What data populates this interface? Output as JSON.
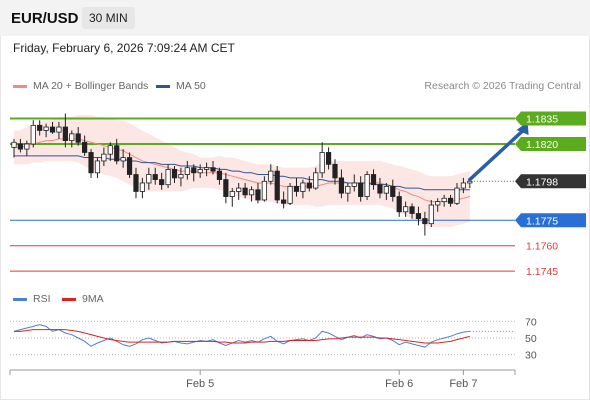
{
  "header": {
    "symbol": "EUR/USD",
    "timeframe": "30 MIN"
  },
  "datetime": "Friday, February 6, 2026 7:09:24 AM CET",
  "legend": {
    "ma20": {
      "label": "MA 20 + Bollinger Bands",
      "color": "#f28b82"
    },
    "ma50": {
      "label": "MA 50",
      "color": "#2f5597"
    },
    "rsi": {
      "label": "RSI",
      "color": "#4f7fd4"
    },
    "ma9": {
      "label": "9MA",
      "color": "#e02020"
    }
  },
  "credit": "Research © 2026 Trading Central",
  "chart_data": [
    {
      "type": "candlestick",
      "ylim": [
        1.1738,
        1.1843
      ],
      "x_ticks": [
        {
          "label": "Feb 5",
          "at": 29
        },
        {
          "label": "Feb 6",
          "at": 60
        },
        {
          "label": "Feb 7",
          "at": 70
        }
      ],
      "last_price": {
        "value": "1.1798",
        "v": 1.1798,
        "color": "#333333"
      },
      "levels": [
        {
          "label": "1.1835",
          "v": 1.1835,
          "color": "#5aab1e",
          "kind": "resistance"
        },
        {
          "label": "1.1820",
          "v": 1.182,
          "color": "#5aab1e",
          "kind": "resistance"
        },
        {
          "label": "1.1775",
          "v": 1.1775,
          "color": "#2a6fd6",
          "kind": "pivot"
        },
        {
          "label": "1.1760",
          "v": 1.176,
          "color": "#e53935",
          "kind": "support"
        },
        {
          "label": "1.1745",
          "v": 1.1745,
          "color": "#e53935",
          "kind": "support"
        }
      ],
      "forecast_arrow": {
        "from": [
          71,
          1.1799
        ],
        "to": [
          80,
          1.1833
        ],
        "color": "#2a5ea8"
      },
      "candles": [
        [
          1.1818,
          1.1823,
          1.1812,
          1.1821
        ],
        [
          1.182,
          1.1823,
          1.1815,
          1.1817
        ],
        [
          1.1817,
          1.1822,
          1.1813,
          1.182
        ],
        [
          1.182,
          1.1834,
          1.1818,
          1.1831
        ],
        [
          1.1831,
          1.1834,
          1.1825,
          1.1828
        ],
        [
          1.1828,
          1.1832,
          1.1824,
          1.183
        ],
        [
          1.183,
          1.1833,
          1.1826,
          1.1827
        ],
        [
          1.1827,
          1.1833,
          1.1823,
          1.183
        ],
        [
          1.183,
          1.1838,
          1.1818,
          1.1822
        ],
        [
          1.1822,
          1.1828,
          1.1818,
          1.1826
        ],
        [
          1.1826,
          1.183,
          1.1819,
          1.1821
        ],
        [
          1.1821,
          1.1825,
          1.1813,
          1.1815
        ],
        [
          1.1815,
          1.1817,
          1.18,
          1.1803
        ],
        [
          1.1803,
          1.1812,
          1.18,
          1.181
        ],
        [
          1.181,
          1.1818,
          1.1807,
          1.1814
        ],
        [
          1.1814,
          1.1821,
          1.181,
          1.1819
        ],
        [
          1.1819,
          1.1823,
          1.1808,
          1.181
        ],
        [
          1.181,
          1.1817,
          1.1806,
          1.1812
        ],
        [
          1.1812,
          1.1815,
          1.18,
          1.1802
        ],
        [
          1.1802,
          1.1806,
          1.1788,
          1.1792
        ],
        [
          1.1792,
          1.18,
          1.1788,
          1.1797
        ],
        [
          1.1797,
          1.1806,
          1.1793,
          1.1802
        ],
        [
          1.1802,
          1.1806,
          1.1796,
          1.1799
        ],
        [
          1.1799,
          1.1803,
          1.1793,
          1.1796
        ],
        [
          1.1796,
          1.1808,
          1.1794,
          1.1805
        ],
        [
          1.1805,
          1.1807,
          1.1797,
          1.18
        ],
        [
          1.18,
          1.1806,
          1.1795,
          1.1802
        ],
        [
          1.1802,
          1.181,
          1.1799,
          1.1806
        ],
        [
          1.1806,
          1.1808,
          1.1798,
          1.1803
        ],
        [
          1.1803,
          1.1808,
          1.18,
          1.1805
        ],
        [
          1.1805,
          1.1809,
          1.1801,
          1.1806
        ],
        [
          1.1806,
          1.181,
          1.1802,
          1.1804
        ],
        [
          1.1804,
          1.1806,
          1.1796,
          1.1799
        ],
        [
          1.1799,
          1.1803,
          1.1785,
          1.1789
        ],
        [
          1.1789,
          1.1794,
          1.1783,
          1.1792
        ],
        [
          1.1792,
          1.1797,
          1.1787,
          1.1794
        ],
        [
          1.1794,
          1.1797,
          1.1788,
          1.179
        ],
        [
          1.179,
          1.1795,
          1.1786,
          1.1793
        ],
        [
          1.1793,
          1.1797,
          1.1785,
          1.1787
        ],
        [
          1.1787,
          1.1801,
          1.1786,
          1.1798
        ],
        [
          1.1798,
          1.1808,
          1.1796,
          1.1804
        ],
        [
          1.1804,
          1.1807,
          1.1785,
          1.1787
        ],
        [
          1.1787,
          1.1792,
          1.1782,
          1.1785
        ],
        [
          1.1785,
          1.1797,
          1.1784,
          1.1795
        ],
        [
          1.1795,
          1.18,
          1.1789,
          1.1792
        ],
        [
          1.1792,
          1.1799,
          1.1788,
          1.1797
        ],
        [
          1.1797,
          1.1801,
          1.1792,
          1.1794
        ],
        [
          1.1794,
          1.1806,
          1.1793,
          1.1803
        ],
        [
          1.1803,
          1.1821,
          1.18,
          1.1815
        ],
        [
          1.1815,
          1.1818,
          1.1805,
          1.1808
        ],
        [
          1.1808,
          1.1811,
          1.1796,
          1.18
        ],
        [
          1.18,
          1.1805,
          1.1788,
          1.1791
        ],
        [
          1.1791,
          1.1797,
          1.1786,
          1.1795
        ],
        [
          1.1795,
          1.1802,
          1.1792,
          1.1797
        ],
        [
          1.1797,
          1.1801,
          1.1786,
          1.1789
        ],
        [
          1.1789,
          1.1804,
          1.1787,
          1.1802
        ],
        [
          1.1802,
          1.1805,
          1.1793,
          1.1796
        ],
        [
          1.1796,
          1.18,
          1.1788,
          1.1791
        ],
        [
          1.1791,
          1.1797,
          1.1787,
          1.1795
        ],
        [
          1.1795,
          1.1799,
          1.1786,
          1.1789
        ],
        [
          1.1789,
          1.1792,
          1.1777,
          1.178
        ],
        [
          1.178,
          1.1786,
          1.1777,
          1.1783
        ],
        [
          1.1783,
          1.1785,
          1.1776,
          1.1779
        ],
        [
          1.1779,
          1.1783,
          1.1772,
          1.1776
        ],
        [
          1.1776,
          1.178,
          1.1766,
          1.1773
        ],
        [
          1.1773,
          1.1787,
          1.1771,
          1.1784
        ],
        [
          1.1784,
          1.1788,
          1.178,
          1.1786
        ],
        [
          1.1786,
          1.179,
          1.1783,
          1.1788
        ],
        [
          1.1788,
          1.179,
          1.1783,
          1.1785
        ],
        [
          1.1785,
          1.1797,
          1.1784,
          1.1794
        ],
        [
          1.1794,
          1.18,
          1.1791,
          1.1797
        ],
        [
          1.1797,
          1.18,
          1.1794,
          1.1798
        ]
      ],
      "ma20": [
        1.1818,
        1.1818,
        1.1819,
        1.182,
        1.1821,
        1.1822,
        1.1822,
        1.1823,
        1.1823,
        1.1823,
        1.1823,
        1.1822,
        1.1821,
        1.182,
        1.1819,
        1.1818,
        1.1817,
        1.1816,
        1.1814,
        1.1812,
        1.181,
        1.1809,
        1.1808,
        1.1807,
        1.1806,
        1.1805,
        1.1804,
        1.1804,
        1.1804,
        1.1803,
        1.1803,
        1.1803,
        1.1803,
        1.1802,
        1.1801,
        1.18,
        1.1799,
        1.1798,
        1.1797,
        1.1797,
        1.1797,
        1.1796,
        1.1795,
        1.1795,
        1.1795,
        1.1795,
        1.1795,
        1.1795,
        1.1796,
        1.1797,
        1.1797,
        1.1797,
        1.1797,
        1.1797,
        1.1797,
        1.1797,
        1.1797,
        1.1797,
        1.1796,
        1.1795,
        1.1793,
        1.1792,
        1.179,
        1.1789,
        1.1787,
        1.1786,
        1.1786,
        1.1786,
        1.1786,
        1.1787,
        1.1788,
        1.1789
      ],
      "ma50": [
        1.1813,
        1.1813,
        1.1813,
        1.1813,
        1.1813,
        1.1813,
        1.1813,
        1.1813,
        1.1813,
        1.1813,
        1.1813,
        1.1812,
        1.1812,
        1.1812,
        1.1812,
        1.1811,
        1.1811,
        1.1811,
        1.181,
        1.181,
        1.1809,
        1.1809,
        1.1809,
        1.1808,
        1.1808,
        1.1808,
        1.1807,
        1.1807,
        1.1807,
        1.1806,
        1.1806,
        1.1806,
        1.1805,
        1.1805,
        1.1804,
        1.1804,
        1.1803,
        1.1803,
        1.1802,
        1.1802,
        1.1802,
        1.1801,
        1.1801,
        1.18,
        1.18,
        1.18,
        1.1799,
        1.1799,
        1.1799,
        1.1798,
        1.1798,
        1.1798,
        1.1797,
        1.1797,
        1.1797,
        1.1797,
        1.1796,
        1.1796,
        1.1796,
        1.1795,
        1.1795,
        1.1794,
        1.1794,
        1.1794,
        1.1793,
        1.1793,
        1.1793,
        1.1793,
        1.1793,
        1.1793,
        1.1793,
        1.1793
      ],
      "bb_width": [
        0.001,
        0.001,
        0.0011,
        0.0011,
        0.0012,
        0.0012,
        0.0012,
        0.0013,
        0.0013,
        0.0013,
        0.0014,
        0.0015,
        0.0016,
        0.0016,
        0.0017,
        0.0017,
        0.0017,
        0.0018,
        0.0018,
        0.0018,
        0.0018,
        0.0017,
        0.0016,
        0.0015,
        0.0014,
        0.0013,
        0.0012,
        0.0011,
        0.001,
        0.0009,
        0.0009,
        0.0009,
        0.001,
        0.001,
        0.0011,
        0.0011,
        0.0011,
        0.0011,
        0.0011,
        0.0011,
        0.0011,
        0.0011,
        0.0011,
        0.0011,
        0.0011,
        0.0011,
        0.0011,
        0.0012,
        0.0013,
        0.0013,
        0.0013,
        0.0013,
        0.0013,
        0.0013,
        0.0013,
        0.0013,
        0.0013,
        0.0013,
        0.0013,
        0.0013,
        0.0014,
        0.0014,
        0.0015,
        0.0015,
        0.0015,
        0.0015,
        0.0015,
        0.0015,
        0.0015,
        0.0015,
        0.0015,
        0.0015
      ]
    },
    {
      "type": "line",
      "series_labels": [
        "RSI",
        "9MA"
      ],
      "ylim": [
        20,
        80
      ],
      "y_ticks": [
        70,
        50,
        30
      ],
      "rsi": [
        58,
        60,
        62,
        64,
        66,
        64,
        58,
        60,
        56,
        54,
        50,
        46,
        40,
        44,
        47,
        50,
        46,
        42,
        40,
        43,
        48,
        50,
        47,
        44,
        45,
        46,
        44,
        43,
        45,
        47,
        46,
        48,
        44,
        41,
        44,
        47,
        45,
        47,
        45,
        49,
        52,
        46,
        43,
        47,
        48,
        49,
        47,
        50,
        58,
        56,
        52,
        48,
        51,
        53,
        50,
        54,
        52,
        49,
        50,
        47,
        42,
        45,
        43,
        41,
        39,
        45,
        48,
        50,
        52,
        55,
        57,
        58
      ],
      "ma9": [
        58,
        58,
        59,
        60,
        60,
        60,
        60,
        60,
        60,
        59,
        58,
        56,
        54,
        52,
        50,
        48,
        47,
        46,
        45,
        45,
        45,
        45,
        45,
        45,
        45,
        46,
        46,
        46,
        46,
        46,
        46,
        46,
        45,
        45,
        44,
        44,
        44,
        45,
        45,
        45,
        46,
        46,
        46,
        47,
        47,
        47,
        47,
        47,
        48,
        49,
        49,
        50,
        51,
        51,
        51,
        51,
        51,
        50,
        50,
        49,
        48,
        47,
        46,
        45,
        44,
        44,
        44,
        45,
        46,
        48,
        50,
        52
      ]
    }
  ]
}
